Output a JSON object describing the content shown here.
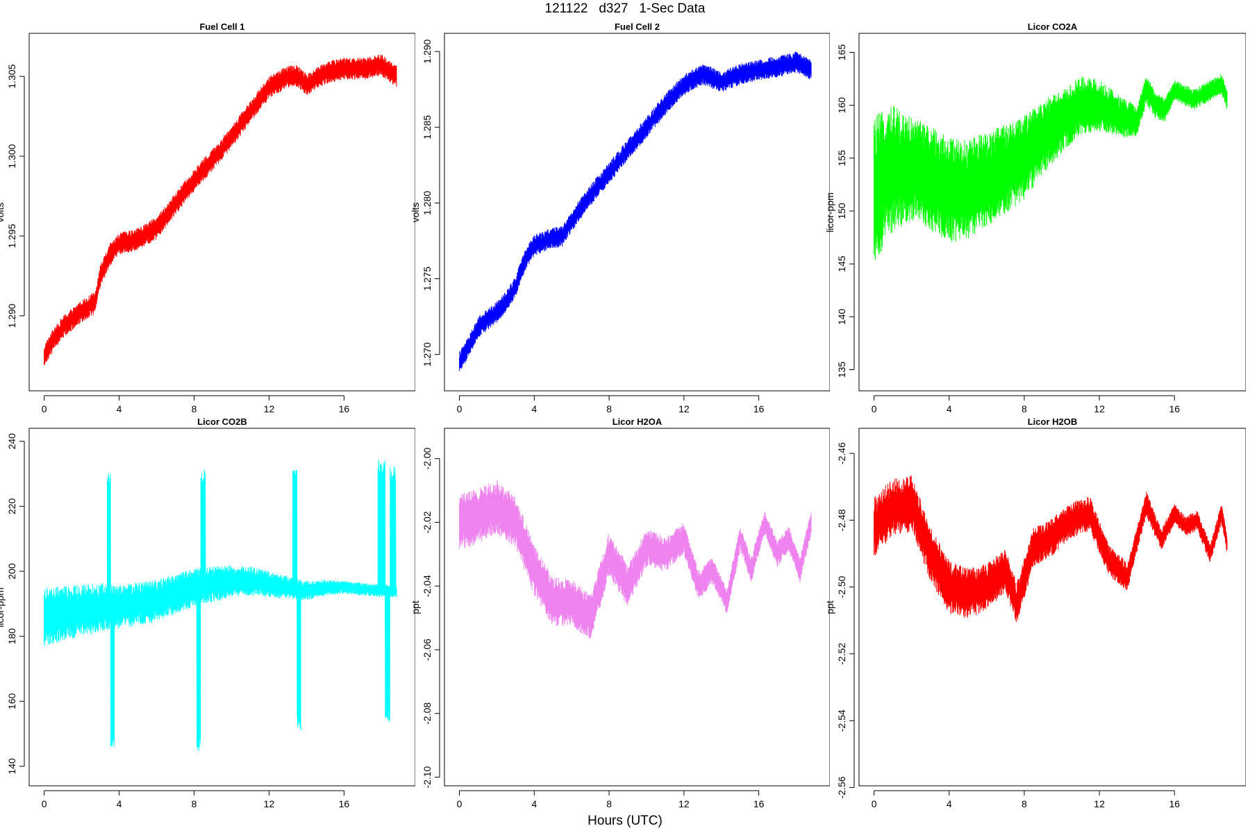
{
  "figure": {
    "title": "121122   d327   1-Sec Data",
    "xlabel": "Hours (UTC)"
  },
  "chart_data": [
    {
      "type": "line",
      "title": "Fuel Cell 1",
      "ylabel": "volts",
      "xlabel": "",
      "color": "#ff0000",
      "xlim": [
        -0.8,
        19.8
      ],
      "ylim": [
        1.2853,
        1.3077
      ],
      "xticks": [
        0,
        4,
        8,
        12,
        16
      ],
      "yticks": [
        1.29,
        1.295,
        1.3,
        1.305
      ],
      "ytick_labels": [
        "1.290",
        "1.295",
        "1.300",
        "1.305"
      ],
      "noise": 0.0007,
      "series": [
        {
          "x": [
            0,
            0.5,
            1,
            1.5,
            2,
            2.7,
            3,
            3.5,
            4,
            5,
            6,
            7,
            8,
            9,
            10,
            11,
            12,
            13,
            13.5,
            14,
            15,
            16,
            17,
            18,
            18.8
          ],
          "y": [
            1.2875,
            1.2885,
            1.2893,
            1.2898,
            1.2903,
            1.2908,
            1.2925,
            1.2938,
            1.2945,
            1.2948,
            1.2955,
            1.297,
            1.2985,
            1.2998,
            1.3012,
            1.3028,
            1.3043,
            1.305,
            1.305,
            1.3045,
            1.3052,
            1.3055,
            1.3055,
            1.3057,
            1.305
          ]
        }
      ]
    },
    {
      "type": "line",
      "title": "Fuel Cell 2",
      "ylabel": "volts",
      "xlabel": "",
      "color": "#0000ff",
      "xlim": [
        -0.8,
        19.8
      ],
      "ylim": [
        1.2676,
        1.2912
      ],
      "xticks": [
        0,
        4,
        8,
        12,
        16
      ],
      "yticks": [
        1.27,
        1.275,
        1.28,
        1.285,
        1.29
      ],
      "ytick_labels": [
        "1.270",
        "1.275",
        "1.280",
        "1.285",
        "1.290"
      ],
      "noise": 0.0007,
      "series": [
        {
          "x": [
            0,
            0.5,
            1,
            2,
            2.5,
            3,
            3.5,
            4,
            5,
            5.5,
            6,
            7,
            8,
            9,
            10,
            11,
            12,
            13,
            14,
            15,
            16,
            17,
            18,
            18.8
          ],
          "y": [
            1.2695,
            1.2705,
            1.2718,
            1.2728,
            1.2735,
            1.2745,
            1.2762,
            1.2772,
            1.2777,
            1.2778,
            1.2788,
            1.2805,
            1.282,
            1.2835,
            1.285,
            1.2865,
            1.2878,
            1.2885,
            1.288,
            1.2885,
            1.2888,
            1.289,
            1.2893,
            1.2888
          ]
        }
      ]
    },
    {
      "type": "line",
      "title": "Licor CO2A",
      "ylabel": "licor-ppm",
      "xlabel": "",
      "color": "#00ff00",
      "xlim": [
        -0.8,
        19.8
      ],
      "ylim": [
        133,
        166.8
      ],
      "xticks": [
        0,
        4,
        8,
        12,
        16
      ],
      "yticks": [
        135,
        140,
        145,
        150,
        155,
        160,
        165
      ],
      "ytick_labels": [
        "135",
        "140",
        "145",
        "150",
        "155",
        "160",
        "165"
      ],
      "noise_profile": {
        "x": [
          0,
          2,
          4,
          6,
          8,
          10,
          12,
          14,
          16,
          18.8
        ],
        "amp": [
          7,
          5,
          5,
          4.5,
          4,
          3,
          2.5,
          1.5,
          1,
          1
        ]
      },
      "series": [
        {
          "x": [
            0,
            1,
            2,
            3,
            4,
            5,
            6,
            7,
            8,
            9,
            10,
            11,
            12,
            13,
            14,
            14.5,
            15,
            15.5,
            16,
            16.5,
            17,
            18,
            18.5,
            18.8
          ],
          "y": [
            152,
            154,
            154,
            153,
            152,
            152,
            153,
            154,
            155,
            157,
            158.5,
            160,
            160,
            159,
            158.5,
            161.5,
            160,
            159.5,
            161.5,
            161,
            160.5,
            161.5,
            162,
            160.5
          ]
        }
      ]
    },
    {
      "type": "line",
      "title": "Licor CO2B",
      "ylabel": "licor-ppm",
      "xlabel": "",
      "color": "#00ffff",
      "xlim": [
        -0.8,
        19.8
      ],
      "ylim": [
        134,
        244
      ],
      "xticks": [
        0,
        4,
        8,
        12,
        16
      ],
      "yticks": [
        140,
        160,
        180,
        200,
        220,
        240
      ],
      "ytick_labels": [
        "140",
        "160",
        "180",
        "200",
        "220",
        "240"
      ],
      "noise_profile": {
        "x": [
          0,
          4,
          8,
          12,
          14,
          16,
          18.8
        ],
        "amp": [
          9,
          7,
          6,
          4,
          3,
          2,
          2
        ]
      },
      "spikes": [
        {
          "x0": 3.35,
          "x1": 3.55,
          "high": 228
        },
        {
          "x0": 3.55,
          "x1": 3.75,
          "high": 148
        },
        {
          "x0": 8.35,
          "x1": 8.6,
          "high": 229
        },
        {
          "x0": 8.15,
          "x1": 8.35,
          "high": 147
        },
        {
          "x0": 13.25,
          "x1": 13.5,
          "high": 229
        },
        {
          "x0": 13.5,
          "x1": 13.7,
          "high": 153
        },
        {
          "x0": 17.8,
          "x1": 18.2,
          "high": 232
        },
        {
          "x0": 18.2,
          "x1": 18.45,
          "high": 156
        },
        {
          "x0": 18.45,
          "x1": 18.75,
          "high": 230
        }
      ],
      "series": [
        {
          "x": [
            0,
            1,
            2,
            3,
            4,
            5,
            6,
            7,
            8,
            9,
            10,
            11,
            12,
            13,
            14,
            15,
            16,
            17,
            18,
            18.8
          ],
          "y": [
            186,
            187,
            188,
            189,
            189,
            190,
            191,
            193,
            195,
            196,
            197,
            197,
            196,
            195,
            194,
            195,
            195,
            194.5,
            194,
            194
          ]
        }
      ]
    },
    {
      "type": "line",
      "title": "Licor H2OA",
      "ylabel": "ppt",
      "xlabel": "",
      "color": "#ee82ee",
      "xlim": [
        -0.8,
        19.8
      ],
      "ylim": [
        -2.1027,
        -1.9905
      ],
      "xticks": [
        0,
        4,
        8,
        12,
        16
      ],
      "yticks": [
        -2.1,
        -2.08,
        -2.06,
        -2.04,
        -2.02,
        -2.0
      ],
      "ytick_labels": [
        "-2.10",
        "-2.08",
        "-2.06",
        "-2.04",
        "-2.02",
        "-2.00"
      ],
      "noise_profile": {
        "x": [
          0,
          4,
          8,
          12,
          14,
          16,
          18.8
        ],
        "amp": [
          0.009,
          0.008,
          0.007,
          0.005,
          0.004,
          0.004,
          0.004
        ]
      },
      "series": [
        {
          "x": [
            0,
            1,
            2,
            3,
            4,
            5,
            6,
            7,
            8,
            9,
            10,
            11,
            12,
            12.8,
            13.5,
            14.3,
            15,
            15.6,
            16.3,
            17,
            17.6,
            18.2,
            18.8
          ],
          "y": [
            -2.02,
            -2.018,
            -2.015,
            -2.02,
            -2.035,
            -2.045,
            -2.045,
            -2.05,
            -2.03,
            -2.04,
            -2.028,
            -2.03,
            -2.025,
            -2.04,
            -2.035,
            -2.045,
            -2.025,
            -2.035,
            -2.02,
            -2.03,
            -2.025,
            -2.035,
            -2.02
          ]
        }
      ]
    },
    {
      "type": "line",
      "title": "Licor H2OB",
      "ylabel": "ppt",
      "xlabel": "",
      "color": "#ff0000",
      "xlim": [
        -0.8,
        19.8
      ],
      "ylim": [
        -2.5595,
        -2.4525
      ],
      "xticks": [
        0,
        4,
        8,
        12,
        16
      ],
      "yticks": [
        -2.56,
        -2.54,
        -2.52,
        -2.5,
        -2.48,
        -2.46
      ],
      "ytick_labels": [
        "-2.56",
        "-2.54",
        "-2.52",
        "-2.50",
        "-2.48",
        "-2.46"
      ],
      "noise_profile": {
        "x": [
          0,
          4,
          8,
          12,
          14,
          16,
          18.8
        ],
        "amp": [
          0.009,
          0.008,
          0.006,
          0.005,
          0.004,
          0.003,
          0.003
        ]
      },
      "series": [
        {
          "x": [
            0,
            1,
            2,
            3,
            4,
            5,
            6,
            7,
            7.6,
            8.5,
            9.5,
            10.5,
            11.5,
            12.5,
            13.5,
            14.5,
            15.3,
            16,
            16.6,
            17.2,
            17.9,
            18.5,
            18.8
          ],
          "y": [
            -2.482,
            -2.476,
            -2.475,
            -2.49,
            -2.5,
            -2.502,
            -2.5,
            -2.495,
            -2.505,
            -2.488,
            -2.485,
            -2.48,
            -2.478,
            -2.492,
            -2.497,
            -2.475,
            -2.486,
            -2.478,
            -2.482,
            -2.48,
            -2.49,
            -2.478,
            -2.487
          ]
        }
      ]
    }
  ]
}
